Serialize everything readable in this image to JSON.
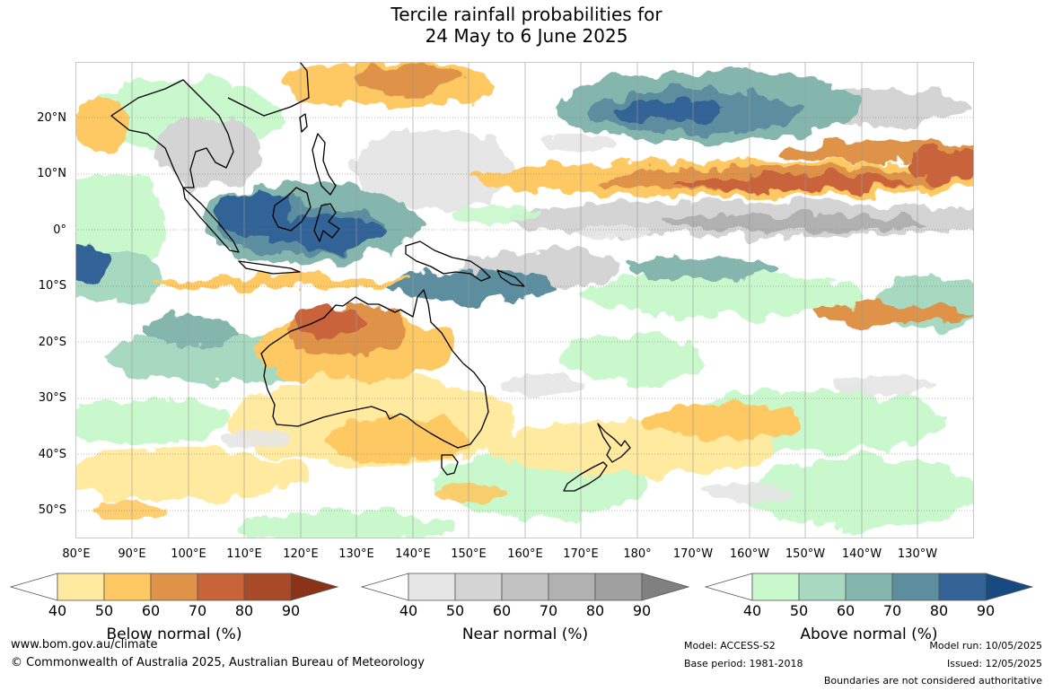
{
  "title": {
    "line1": "Tercile rainfall probabilities for",
    "line2": "24 May to 6 June 2025"
  },
  "latitude_labels": [
    "20°N",
    "10°N",
    "0°",
    "10°S",
    "20°S",
    "30°S",
    "40°S",
    "50°S"
  ],
  "longitude_labels": [
    "80°E",
    "90°E",
    "100°E",
    "110°E",
    "120°E",
    "130°E",
    "140°E",
    "150°E",
    "160°E",
    "170°E",
    "180°",
    "170°W",
    "160°W",
    "150°W",
    "140°W",
    "130°W"
  ],
  "colorbars": {
    "below": {
      "title": "Below normal (%)",
      "ticks": [
        "40",
        "50",
        "60",
        "70",
        "80",
        "90"
      ],
      "colors": [
        "#ffffff",
        "#ffeaa0",
        "#fec963",
        "#de9349",
        "#c8643a",
        "#a84a27",
        "#8a3319"
      ]
    },
    "near": {
      "title": "Near normal (%)",
      "ticks": [
        "40",
        "50",
        "60",
        "70",
        "80",
        "90"
      ],
      "colors": [
        "#ffffff",
        "#e6e6e6",
        "#d4d4d4",
        "#c2c2c2",
        "#b1b1b1",
        "#a0a0a0",
        "#808080"
      ]
    },
    "above": {
      "title": "Above normal (%)",
      "ticks": [
        "40",
        "50",
        "60",
        "70",
        "80",
        "90"
      ],
      "colors": [
        "#ffffff",
        "#c9f8cc",
        "#a6d9bf",
        "#84b6ae",
        "#5d8ea0",
        "#336396",
        "#174a80"
      ]
    }
  },
  "footer": {
    "website": "www.bom.gov.au/climate",
    "copyright": "© Commonwealth of Australia 2025, Australian Bureau of Meteorology",
    "model": "Model: ACCESS-S2",
    "base_period": "Base period: 1981-2018",
    "model_run": "Model run: 10/05/2025",
    "issued": "Issued: 12/05/2025",
    "disclaimer": "Boundaries are not considered authoritative"
  }
}
